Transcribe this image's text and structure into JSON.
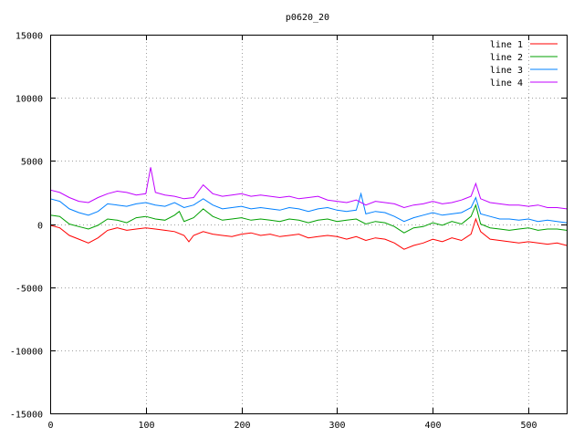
{
  "chart_data": {
    "type": "line",
    "title": "p0620_20",
    "xlabel": "",
    "ylabel": "",
    "xlim": [
      0,
      540
    ],
    "ylim": [
      -15000,
      15000
    ],
    "x_ticks": [
      0,
      100,
      200,
      300,
      400,
      500
    ],
    "y_ticks": [
      -15000,
      -10000,
      -5000,
      0,
      5000,
      10000,
      15000
    ],
    "grid": true,
    "legend_position": "top-right",
    "series": [
      {
        "name": "line 1",
        "color": "#ff0000",
        "x": [
          0,
          10,
          20,
          30,
          40,
          50,
          60,
          70,
          80,
          90,
          100,
          110,
          120,
          130,
          140,
          145,
          150,
          160,
          170,
          180,
          190,
          200,
          210,
          220,
          230,
          240,
          250,
          260,
          270,
          280,
          290,
          300,
          310,
          320,
          330,
          340,
          350,
          360,
          370,
          380,
          390,
          400,
          410,
          420,
          430,
          440,
          445,
          450,
          460,
          470,
          480,
          490,
          500,
          510,
          520,
          530,
          540
        ],
        "values": [
          -100,
          -300,
          -900,
          -1200,
          -1500,
          -1100,
          -500,
          -300,
          -500,
          -400,
          -300,
          -400,
          -500,
          -600,
          -900,
          -1400,
          -900,
          -600,
          -800,
          -900,
          -1000,
          -800,
          -700,
          -900,
          -800,
          -1000,
          -900,
          -800,
          -1100,
          -1000,
          -900,
          -1000,
          -1200,
          -1000,
          -1300,
          -1100,
          -1200,
          -1500,
          -2000,
          -1700,
          -1500,
          -1200,
          -1400,
          -1100,
          -1300,
          -800,
          400,
          -600,
          -1200,
          -1300,
          -1400,
          -1500,
          -1400,
          -1500,
          -1600,
          -1500,
          -1700
        ]
      },
      {
        "name": "line 2",
        "color": "#00a000",
        "x": [
          0,
          10,
          20,
          30,
          40,
          50,
          60,
          70,
          80,
          90,
          100,
          110,
          120,
          130,
          135,
          140,
          150,
          160,
          170,
          180,
          190,
          200,
          210,
          220,
          230,
          240,
          250,
          260,
          270,
          280,
          290,
          300,
          310,
          320,
          330,
          340,
          350,
          360,
          370,
          380,
          390,
          400,
          410,
          420,
          430,
          440,
          445,
          450,
          460,
          470,
          480,
          490,
          500,
          510,
          520,
          530,
          540
        ],
        "values": [
          700,
          600,
          0,
          -200,
          -400,
          -100,
          400,
          300,
          100,
          500,
          600,
          400,
          300,
          700,
          1000,
          200,
          500,
          1200,
          600,
          300,
          400,
          500,
          300,
          400,
          300,
          200,
          400,
          300,
          100,
          300,
          400,
          200,
          300,
          400,
          0,
          200,
          100,
          -200,
          -700,
          -300,
          -200,
          100,
          -100,
          200,
          0,
          600,
          1500,
          0,
          -300,
          -400,
          -500,
          -400,
          -300,
          -500,
          -400,
          -400,
          -500
        ]
      },
      {
        "name": "line 3",
        "color": "#0080ff",
        "x": [
          0,
          10,
          20,
          30,
          40,
          50,
          60,
          70,
          80,
          90,
          100,
          110,
          120,
          130,
          140,
          150,
          160,
          170,
          180,
          190,
          200,
          210,
          220,
          230,
          240,
          250,
          260,
          270,
          280,
          290,
          300,
          310,
          320,
          325,
          330,
          340,
          350,
          360,
          370,
          380,
          390,
          400,
          410,
          420,
          430,
          440,
          445,
          450,
          460,
          470,
          480,
          490,
          500,
          510,
          520,
          530,
          540
        ],
        "values": [
          2000,
          1800,
          1200,
          900,
          700,
          1000,
          1600,
          1500,
          1400,
          1600,
          1700,
          1500,
          1400,
          1700,
          1300,
          1500,
          2000,
          1500,
          1200,
          1300,
          1400,
          1200,
          1300,
          1200,
          1100,
          1300,
          1200,
          1000,
          1200,
          1300,
          1100,
          1000,
          1100,
          2400,
          800,
          1000,
          900,
          600,
          200,
          500,
          700,
          900,
          700,
          800,
          900,
          1300,
          2100,
          800,
          600,
          400,
          400,
          300,
          400,
          200,
          300,
          200,
          100
        ]
      },
      {
        "name": "line 4",
        "color": "#c000ff",
        "x": [
          0,
          10,
          20,
          30,
          40,
          50,
          60,
          70,
          80,
          90,
          100,
          105,
          110,
          120,
          130,
          140,
          150,
          160,
          170,
          180,
          190,
          200,
          210,
          220,
          230,
          240,
          250,
          260,
          270,
          280,
          290,
          300,
          310,
          320,
          330,
          340,
          350,
          360,
          370,
          380,
          390,
          400,
          410,
          420,
          430,
          440,
          445,
          450,
          460,
          470,
          480,
          490,
          500,
          510,
          520,
          530,
          540
        ],
        "values": [
          2700,
          2500,
          2100,
          1800,
          1700,
          2100,
          2400,
          2600,
          2500,
          2300,
          2400,
          4500,
          2500,
          2300,
          2200,
          2000,
          2100,
          3100,
          2400,
          2200,
          2300,
          2400,
          2200,
          2300,
          2200,
          2100,
          2200,
          2000,
          2100,
          2200,
          1900,
          1800,
          1700,
          1900,
          1500,
          1800,
          1700,
          1600,
          1300,
          1500,
          1600,
          1800,
          1600,
          1700,
          1900,
          2200,
          3200,
          2000,
          1700,
          1600,
          1500,
          1500,
          1400,
          1500,
          1300,
          1300,
          1200
        ]
      }
    ]
  }
}
